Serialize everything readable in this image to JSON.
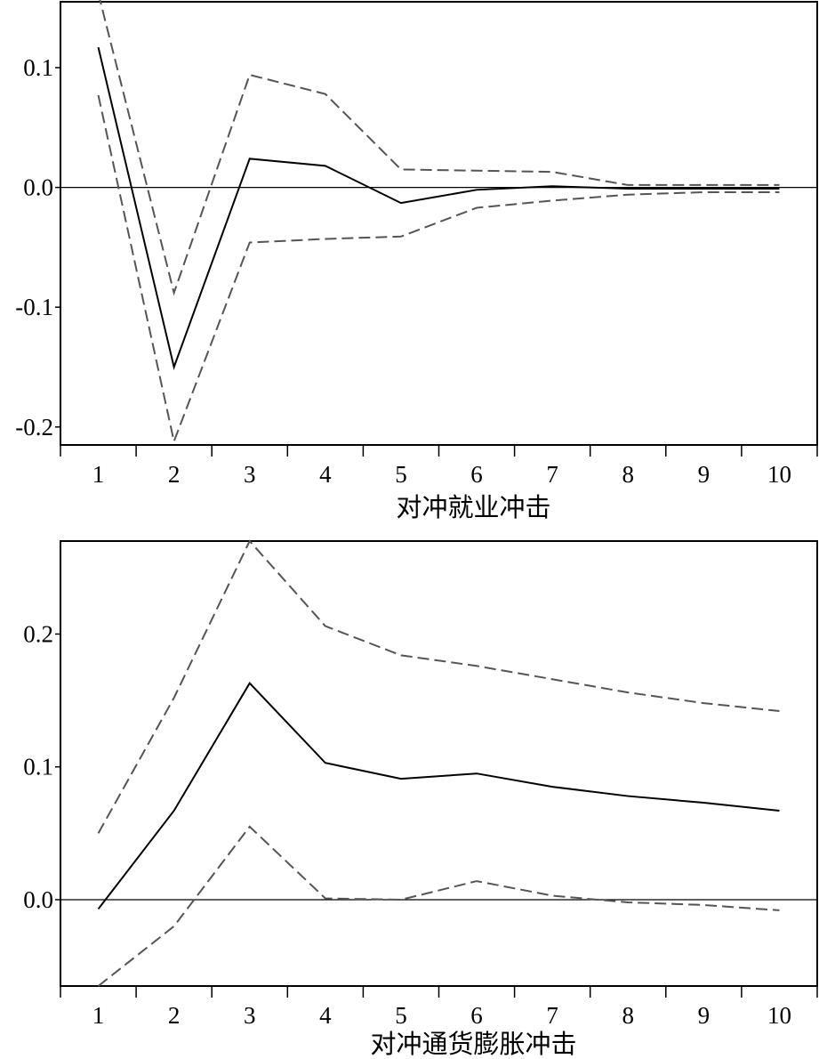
{
  "chart_data": [
    {
      "type": "line",
      "xlabel": "对冲就业冲击",
      "ylabel": "",
      "x": [
        1,
        2,
        3,
        4,
        5,
        6,
        7,
        8,
        9,
        10
      ],
      "xlim": [
        0.5,
        10.5
      ],
      "ylim": [
        -0.215,
        0.155
      ],
      "yticks": [
        "-0.2",
        "-0.1",
        "0.0",
        "0.1"
      ],
      "ytick_values": [
        -0.2,
        -0.1,
        0.0,
        0.1
      ],
      "zero_line": true,
      "series": [
        {
          "role": "irf",
          "style": "solid",
          "values": [
            0.117,
            -0.15,
            0.024,
            0.018,
            -0.013,
            -0.002,
            0.001,
            -0.001,
            -0.001,
            -0.001
          ]
        },
        {
          "role": "upper",
          "style": "dashed",
          "values": [
            0.162,
            -0.088,
            0.094,
            0.078,
            0.015,
            0.014,
            0.013,
            0.002,
            0.002,
            0.002
          ]
        },
        {
          "role": "lower",
          "style": "dashed",
          "values": [
            0.077,
            -0.212,
            -0.046,
            -0.043,
            -0.041,
            -0.017,
            -0.011,
            -0.006,
            -0.004,
            -0.004
          ]
        }
      ]
    },
    {
      "type": "line",
      "xlabel": "对冲通货膨胀冲击",
      "ylabel": "",
      "x": [
        1,
        2,
        3,
        4,
        5,
        6,
        7,
        8,
        9,
        10
      ],
      "xlim": [
        0.5,
        10.5
      ],
      "ylim": [
        -0.065,
        0.27
      ],
      "yticks": [
        "0.0",
        "0.1",
        "0.2"
      ],
      "ytick_values": [
        0.0,
        0.1,
        0.2
      ],
      "zero_line": true,
      "series": [
        {
          "role": "irf",
          "style": "solid",
          "values": [
            -0.007,
            0.067,
            0.163,
            0.103,
            0.091,
            0.095,
            0.085,
            0.078,
            0.073,
            0.067
          ]
        },
        {
          "role": "upper",
          "style": "dashed",
          "values": [
            0.05,
            0.152,
            0.27,
            0.206,
            0.184,
            0.176,
            0.166,
            0.156,
            0.148,
            0.142
          ]
        },
        {
          "role": "lower",
          "style": "dashed",
          "values": [
            -0.065,
            -0.02,
            0.055,
            0.001,
            0.0,
            0.014,
            0.003,
            -0.002,
            -0.004,
            -0.008
          ]
        }
      ]
    }
  ]
}
